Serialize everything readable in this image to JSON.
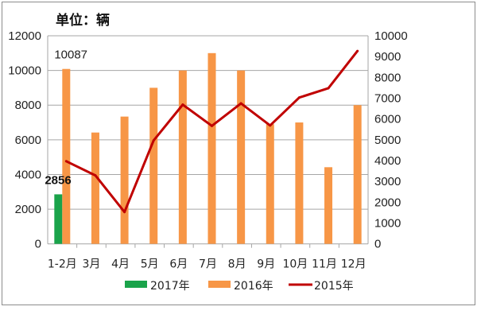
{
  "chart_data": {
    "type": "bar",
    "title": "单位：辆",
    "categories": [
      "1-2月",
      "3月",
      "4月",
      "5月",
      "6月",
      "7月",
      "8月",
      "9月",
      "10月",
      "11月",
      "12月"
    ],
    "series": [
      {
        "name": "2017年",
        "type": "bar",
        "axis": "left",
        "color": "#1aa34a",
        "values": [
          2856,
          null,
          null,
          null,
          null,
          null,
          null,
          null,
          null,
          null,
          null
        ]
      },
      {
        "name": "2016年",
        "type": "bar",
        "axis": "left",
        "color": "#f79646",
        "values": [
          10087,
          6420,
          7340,
          9000,
          10000,
          11000,
          10000,
          6900,
          7000,
          4420,
          8000
        ]
      },
      {
        "name": "2015年",
        "type": "line",
        "axis": "right",
        "color": "#c00000",
        "values": [
          3970,
          3290,
          1530,
          4970,
          6690,
          5670,
          6750,
          5690,
          7030,
          7480,
          9270
        ]
      }
    ],
    "data_labels": [
      {
        "series": "2016年",
        "category": "1-2月",
        "text": "10087"
      },
      {
        "series": "2017年",
        "category": "1-2月",
        "text": "2856"
      }
    ],
    "ylim_left": [
      0,
      12000
    ],
    "yticks_left": [
      "0",
      "2000",
      "4000",
      "6000",
      "8000",
      "10000",
      "12000"
    ],
    "ylim_right": [
      0,
      10000
    ],
    "yticks_right": [
      "0",
      "1000",
      "2000",
      "3000",
      "4000",
      "5000",
      "6000",
      "7000",
      "8000",
      "9000",
      "10000"
    ],
    "grid": true,
    "legend": "bottom"
  }
}
